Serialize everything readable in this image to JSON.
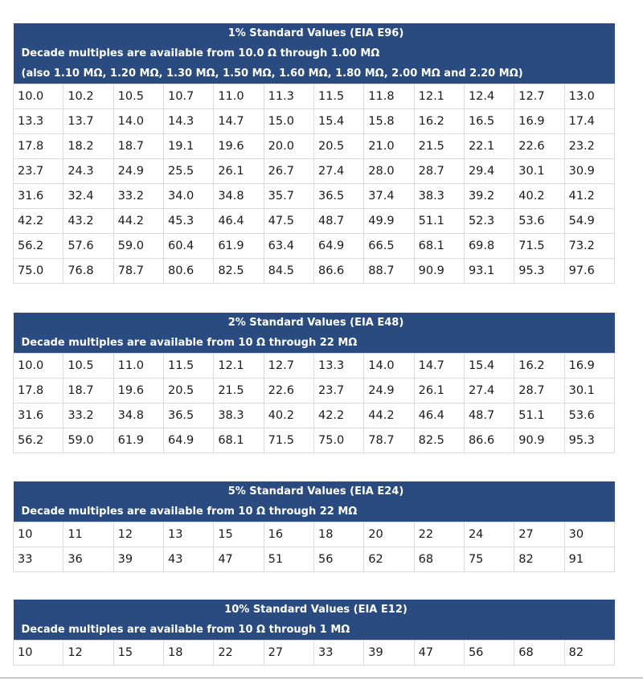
{
  "tables": [
    {
      "title": "1% Standard Values (EIA E96)",
      "notes": [
        "Decade multiples are available from 10.0 Ω through 1.00 MΩ",
        "(also 1.10 MΩ, 1.20 MΩ, 1.30 MΩ, 1.50 MΩ, 1.60 MΩ, 1.80 MΩ, 2.00 MΩ and 2.20 MΩ)"
      ],
      "rows": [
        [
          "10.0",
          "10.2",
          "10.5",
          "10.7",
          "11.0",
          "11.3",
          "11.5",
          "11.8",
          "12.1",
          "12.4",
          "12.7",
          "13.0"
        ],
        [
          "13.3",
          "13.7",
          "14.0",
          "14.3",
          "14.7",
          "15.0",
          "15.4",
          "15.8",
          "16.2",
          "16.5",
          "16.9",
          "17.4"
        ],
        [
          "17.8",
          "18.2",
          "18.7",
          "19.1",
          "19.6",
          "20.0",
          "20.5",
          "21.0",
          "21.5",
          "22.1",
          "22.6",
          "23.2"
        ],
        [
          "23.7",
          "24.3",
          "24.9",
          "25.5",
          "26.1",
          "26.7",
          "27.4",
          "28.0",
          "28.7",
          "29.4",
          "30.1",
          "30.9"
        ],
        [
          "31.6",
          "32.4",
          "33.2",
          "34.0",
          "34.8",
          "35.7",
          "36.5",
          "37.4",
          "38.3",
          "39.2",
          "40.2",
          "41.2"
        ],
        [
          "42.2",
          "43.2",
          "44.2",
          "45.3",
          "46.4",
          "47.5",
          "48.7",
          "49.9",
          "51.1",
          "52.3",
          "53.6",
          "54.9"
        ],
        [
          "56.2",
          "57.6",
          "59.0",
          "60.4",
          "61.9",
          "63.4",
          "64.9",
          "66.5",
          "68.1",
          "69.8",
          "71.5",
          "73.2"
        ],
        [
          "75.0",
          "76.8",
          "78.7",
          "80.6",
          "82.5",
          "84.5",
          "86.6",
          "88.7",
          "90.9",
          "93.1",
          "95.3",
          "97.6"
        ]
      ]
    },
    {
      "title": "2% Standard Values (EIA E48)",
      "notes": [
        "Decade multiples are available from 10 Ω through 22 MΩ"
      ],
      "rows": [
        [
          "10.0",
          "10.5",
          "11.0",
          "11.5",
          "12.1",
          "12.7",
          "13.3",
          "14.0",
          "14.7",
          "15.4",
          "16.2",
          "16.9"
        ],
        [
          "17.8",
          "18.7",
          "19.6",
          "20.5",
          "21.5",
          "22.6",
          "23.7",
          "24.9",
          "26.1",
          "27.4",
          "28.7",
          "30.1"
        ],
        [
          "31.6",
          "33.2",
          "34.8",
          "36.5",
          "38.3",
          "40.2",
          "42.2",
          "44.2",
          "46.4",
          "48.7",
          "51.1",
          "53.6"
        ],
        [
          "56.2",
          "59.0",
          "61.9",
          "64.9",
          "68.1",
          "71.5",
          "75.0",
          "78.7",
          "82.5",
          "86.6",
          "90.9",
          "95.3"
        ]
      ]
    },
    {
      "title": "5% Standard Values (EIA E24)",
      "notes": [
        "Decade multiples are available from 10 Ω through 22 MΩ"
      ],
      "rows": [
        [
          "10",
          "11",
          "12",
          "13",
          "15",
          "16",
          "18",
          "20",
          "22",
          "24",
          "27",
          "30"
        ],
        [
          "33",
          "36",
          "39",
          "43",
          "47",
          "51",
          "56",
          "62",
          "68",
          "75",
          "82",
          "91"
        ]
      ]
    },
    {
      "title": "10% Standard Values (EIA E12)",
      "notes": [
        "Decade multiples are available from 10 Ω through 1 MΩ"
      ],
      "rows": [
        [
          "10",
          "12",
          "15",
          "18",
          "22",
          "27",
          "33",
          "39",
          "47",
          "56",
          "68",
          "82"
        ]
      ]
    }
  ]
}
